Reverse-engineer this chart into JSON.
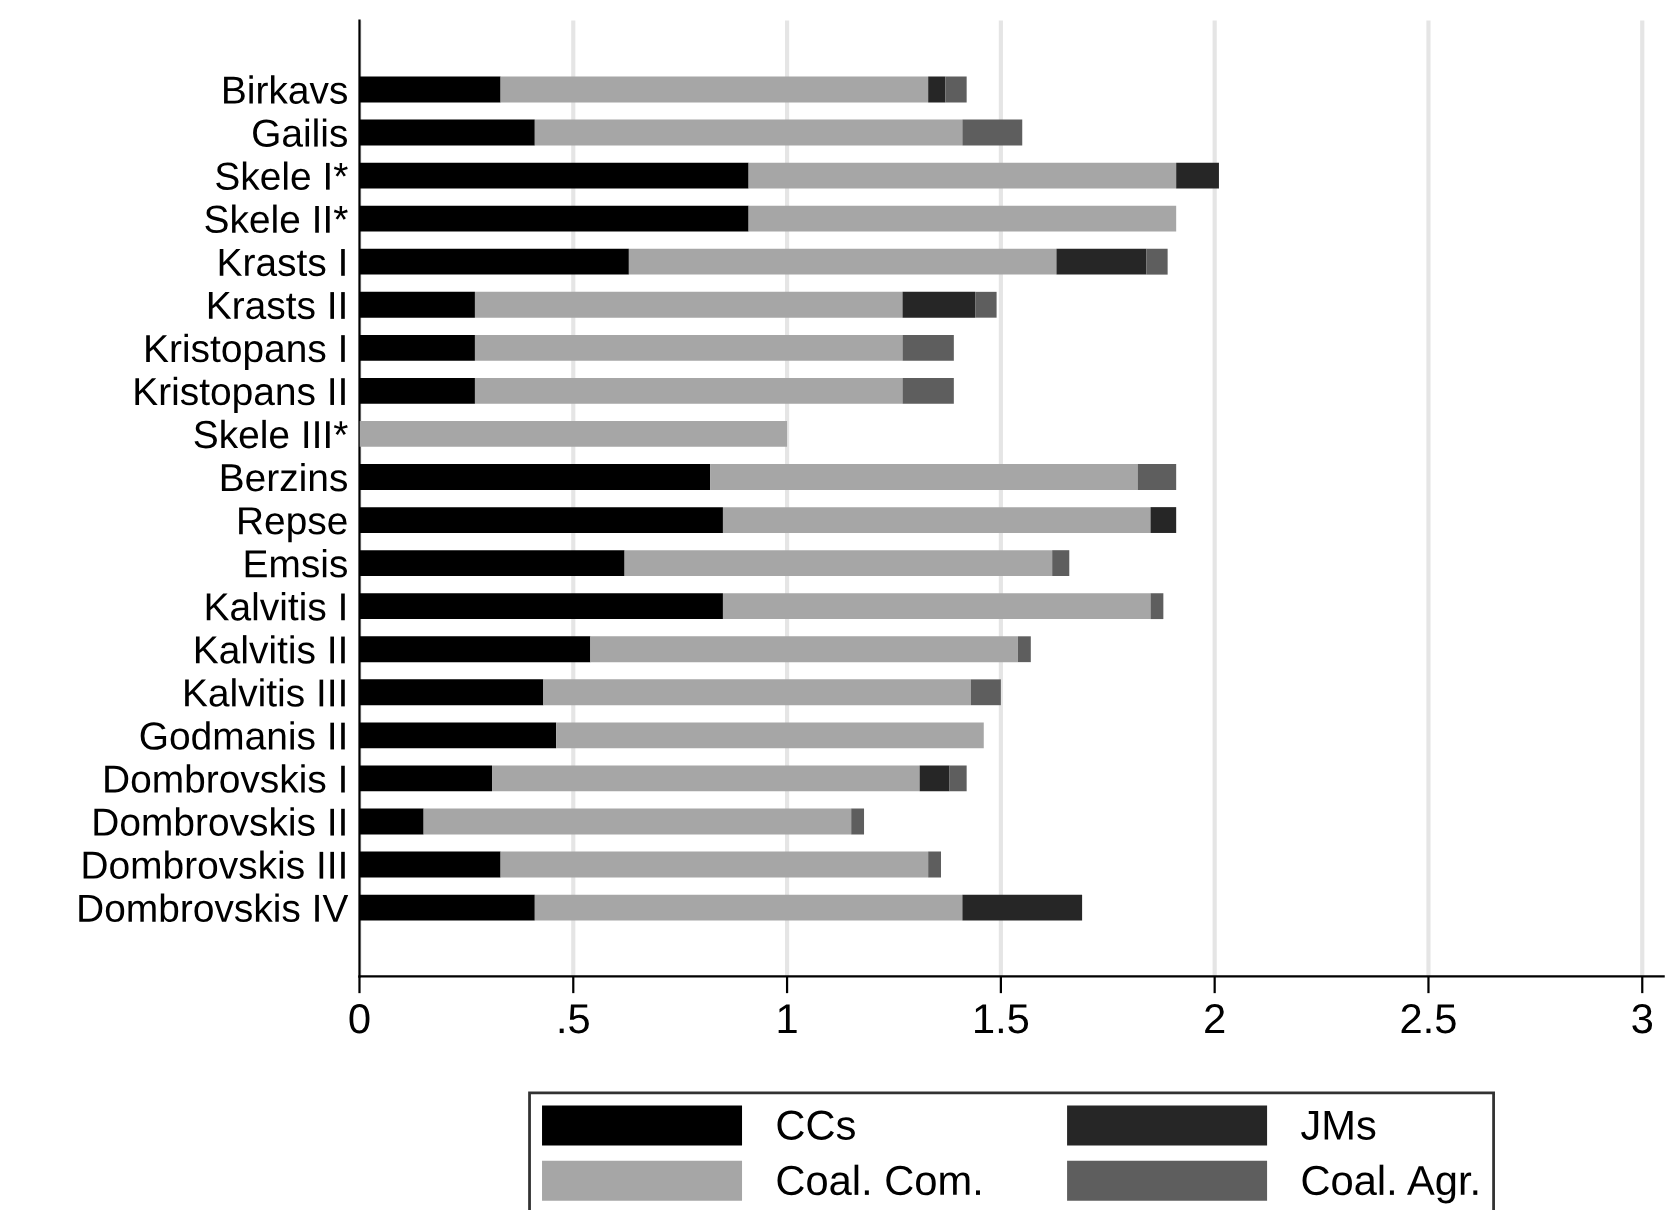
{
  "chart_data": {
    "type": "bar",
    "orientation": "horizontal",
    "stacked": true,
    "categories": [
      "Birkavs",
      "Gailis",
      "Skele I*",
      "Skele II*",
      "Krasts I",
      "Krasts II",
      "Kristopans I",
      "Kristopans II",
      "Skele III*",
      "Berzins",
      "Repse",
      "Emsis",
      "Kalvitis I",
      "Kalvitis II",
      "Kalvitis III",
      "Godmanis II",
      "Dombrovskis I",
      "Dombrovskis II",
      "Dombrovskis III",
      "Dombrovskis IV"
    ],
    "series": [
      {
        "name": "CCs",
        "color": "#000000",
        "values": [
          0.33,
          0.41,
          0.91,
          0.91,
          0.63,
          0.27,
          0.27,
          0.27,
          null,
          0.82,
          0.85,
          0.62,
          0.85,
          0.54,
          0.43,
          0.46,
          0.31,
          0.15,
          0.33,
          0.41
        ]
      },
      {
        "name": "Coal. Com.",
        "color": "#a6a6a6",
        "values": [
          1.0,
          1.0,
          1.0,
          1.0,
          1.0,
          1.0,
          1.0,
          1.0,
          1.0,
          1.0,
          1.0,
          1.0,
          1.0,
          1.0,
          1.0,
          1.0,
          1.0,
          1.0,
          1.0,
          1.0
        ]
      },
      {
        "name": "JMs",
        "color": "#262626",
        "values": [
          0.04,
          null,
          0.1,
          null,
          0.21,
          0.17,
          null,
          null,
          null,
          null,
          0.06,
          null,
          null,
          null,
          null,
          null,
          0.07,
          null,
          null,
          0.28
        ]
      },
      {
        "name": "Coal. Agr.",
        "color": "#5e5e5e",
        "values": [
          0.05,
          0.14,
          null,
          null,
          0.05,
          0.05,
          0.12,
          0.12,
          null,
          0.09,
          null,
          0.04,
          0.03,
          0.03,
          0.07,
          null,
          0.04,
          0.03,
          0.03,
          null
        ]
      }
    ],
    "xlim": [
      0,
      3.05
    ],
    "xticks": [
      0,
      {
        "value": 0.5,
        "label": ".5"
      },
      1,
      1.5,
      2,
      2.5,
      3
    ],
    "grid": "x",
    "legend": "bottom"
  }
}
